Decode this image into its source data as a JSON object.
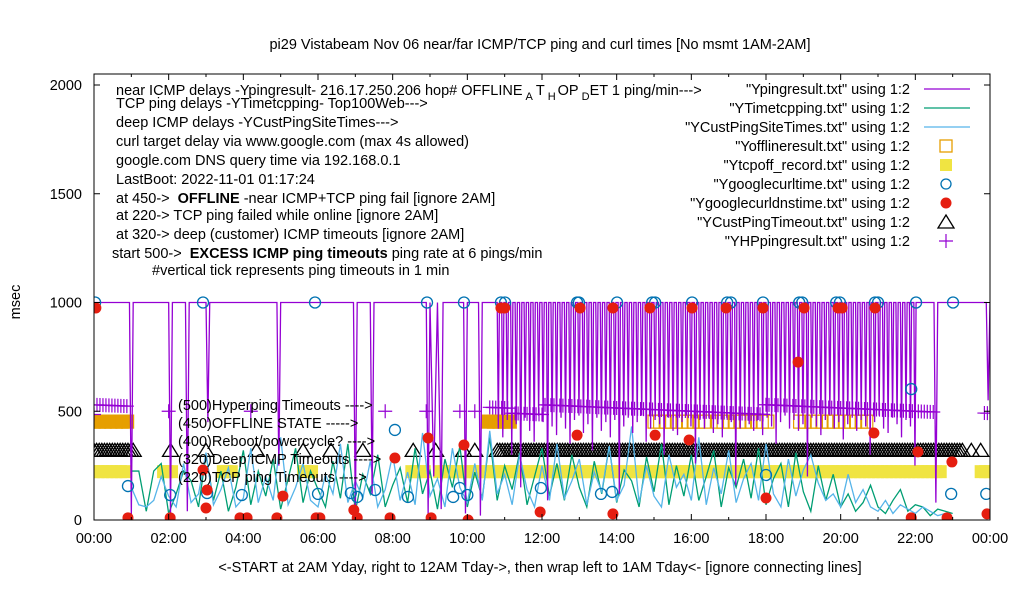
{
  "colors": {
    "ping": "#9400d3",
    "tcp": "#009e73",
    "deep": "#56b4e9",
    "offline": "#e69f00",
    "tcpoff": "#f0e442",
    "curl": "#0072b2",
    "dns": "#e51e10",
    "custtimeout": "#000000",
    "hp": "#9400d3"
  },
  "chart_data": {
    "type": "line",
    "title": "pi29 Vistabeam Nov 06  near/far ICMP/TCP ping and curl times [No msmt 1AM-2AM]",
    "xlabel": "<-START at 2AM Yday, right to 12AM Tday->, then wrap left to 1AM Tday<- [ignore connecting lines]",
    "ylabel": "msec",
    "xlim": [
      0,
      24
    ],
    "ylim": [
      0,
      2000
    ],
    "x_ticks": [
      "00:00",
      "02:00",
      "04:00",
      "06:00",
      "08:00",
      "10:00",
      "12:00",
      "14:00",
      "16:00",
      "18:00",
      "20:00",
      "22:00",
      "00:00"
    ],
    "y_ticks": [
      "0",
      "500",
      "1000",
      "1500",
      "2000"
    ],
    "grid": false,
    "legend_position": "top-right",
    "notes": [
      {
        "text": "TCP ping delays -YTimetcpping- Top100Web--->"
      },
      {
        "text": "deep ICMP delays -YCustPingSiteTimes--->"
      },
      {
        "text": "curl target delay via www.google.com (max 4s allowed)"
      },
      {
        "text": "google.com DNS query time via 192.168.0.1"
      },
      {
        "text": "LastBoot: 2022-11-01 01:17:24"
      },
      {
        "pre": "at 450-> ",
        "bold": "OFFLINE",
        "post": " -near ICMP+TCP ping fail [ignore 2AM]"
      },
      {
        "text": "at 220-> TCP ping failed while online [ignore 2AM]"
      },
      {
        "text": "at 320-> deep (customer) ICMP timeouts [ignore 2AM]"
      },
      {
        "pre": "start 500-> ",
        "bold": "EXCESS ICMP ping timeouts",
        "post": "  ping rate at 6 pings/min"
      },
      {
        "text": "#vertical tick represents ping timeouts in 1 min"
      }
    ],
    "first_note": {
      "a": "near ICMP delays -Ypingresult- 216.17.250.206 hop# OFFLINE",
      "s1": "A",
      "b": "T",
      "s2": "H",
      "c": "OP",
      "s3": "D",
      "d": "ET 1 ping/min--->"
    },
    "level_labels": [
      {
        "text": "(500)Hyperping Timeouts ---->",
        "y": 500
      },
      {
        "text": "(450)OFFLINE STATE ----->",
        "y": 450
      },
      {
        "text": "(400)Reboot/powercycle? ---->",
        "y": 400
      },
      {
        "text": "(320)Deep ICMP Timeouts ---->",
        "y": 320
      },
      {
        "text": "(220)TCP ping Timeouts ---->",
        "y": 220
      }
    ],
    "legend": [
      "\"Ypingresult.txt\" using 1:2",
      "\"YTimetcpping.txt\" using 1:2",
      "\"YCustPingSiteTimes.txt\" using 1:2",
      "\"Yofflineresult.txt\" using 1:2",
      "\"Ytcpoff_record.txt\" using 1:2",
      "\"Ygooglecurltime.txt\" using 1:2",
      "\"Ygooglecurldnstime.txt\" using 1:2",
      "\"YCustPingTimeout.txt\" using 1:2",
      "\"YHPpingresult.txt\" using 1:2"
    ],
    "series": {
      "ping_sparse": [
        [
          0,
          1000
        ],
        [
          0.95,
          1000
        ],
        [
          1.0,
          20
        ],
        [
          1.05,
          1000
        ],
        [
          2.0,
          1000
        ],
        [
          2.05,
          30
        ],
        [
          2.1,
          1000
        ],
        [
          2.45,
          1000
        ],
        [
          2.5,
          40
        ],
        [
          2.55,
          1000
        ],
        [
          3.0,
          1000
        ],
        [
          3.05,
          450
        ],
        [
          3.1,
          1000
        ],
        [
          4.9,
          1000
        ],
        [
          4.95,
          250
        ],
        [
          5.0,
          1000
        ],
        [
          6.95,
          1000
        ],
        [
          7.0,
          20
        ],
        [
          7.05,
          1000
        ],
        [
          7.4,
          1000
        ],
        [
          7.45,
          120
        ],
        [
          7.5,
          1000
        ],
        [
          8.9,
          1000
        ],
        [
          8.95,
          20
        ],
        [
          9.0,
          1000
        ],
        [
          9.1,
          200
        ],
        [
          9.2,
          1000
        ],
        [
          9.3,
          50
        ],
        [
          9.35,
          1000
        ],
        [
          9.9,
          1000
        ],
        [
          9.95,
          30
        ],
        [
          10.0,
          1000
        ],
        [
          10.3,
          1000
        ],
        [
          10.35,
          20
        ],
        [
          10.4,
          1000
        ],
        [
          10.8,
          1000
        ]
      ],
      "ping_dense": {
        "start": 10.8,
        "step": 0.12,
        "lows": [
          420,
          380,
          460,
          300,
          440,
          150,
          470,
          410,
          360,
          480,
          450,
          90,
          430,
          390,
          470,
          420,
          350,
          460,
          480,
          400,
          440,
          320,
          470,
          410,
          450,
          380,
          460,
          120,
          430,
          470,
          400,
          450,
          480,
          360,
          420,
          460,
          440,
          300,
          470,
          410,
          390,
          450,
          480,
          430,
          260,
          460,
          420,
          470,
          400,
          440,
          380,
          470,
          450,
          160,
          420,
          480,
          440,
          410,
          460,
          390,
          470,
          430,
          350,
          450,
          480,
          420,
          460,
          410,
          440,
          200,
          470,
          430,
          390,
          460,
          480,
          420,
          450,
          370,
          440,
          470,
          410,
          460,
          430,
          300,
          450,
          480,
          420,
          400,
          470,
          440,
          380,
          460,
          430,
          250
        ]
      },
      "ping_tail": [
        [
          22.5,
          1000
        ],
        [
          22.55,
          80
        ],
        [
          22.6,
          1000
        ],
        [
          23.9,
          1000
        ],
        [
          23.95,
          550
        ],
        [
          24,
          1000
        ]
      ],
      "tcp": {
        "start": 1.0,
        "step": 0.2,
        "values": [
          225,
          225,
          40,
          225,
          260,
          30,
          120,
          225,
          180,
          60,
          300,
          90,
          225,
          40,
          150,
          320,
          70,
          225,
          110,
          280,
          50,
          190,
          330,
          80,
          225,
          140,
          60,
          270,
          100,
          350,
          40,
          210,
          120,
          300,
          60,
          160,
          240,
          80,
          330,
          120,
          225,
          50,
          280,
          150,
          340,
          60,
          220,
          100,
          380,
          90,
          250,
          140,
          310,
          70,
          200,
          330,
          110,
          260,
          90,
          300,
          150,
          60,
          270,
          120,
          340,
          80,
          230,
          180,
          60,
          290,
          130,
          350,
          70,
          250,
          110,
          300,
          90,
          200,
          320,
          60,
          240,
          150,
          280,
          100,
          330,
          70,
          190,
          260,
          60,
          310,
          130,
          40,
          250,
          90,
          210,
          60,
          120,
          40,
          80,
          160,
          60,
          30,
          90,
          140,
          40,
          70,
          60,
          20,
          50,
          40,
          30
        ]
      },
      "deep": {
        "start": 1.0,
        "step": 0.2,
        "values": [
          150,
          70,
          60,
          90,
          200,
          110,
          60,
          260,
          80,
          120,
          310,
          70,
          140,
          240,
          60,
          100,
          330,
          80,
          200,
          90,
          380,
          70,
          150,
          260,
          90,
          60,
          210,
          120,
          350,
          80,
          180,
          100,
          270,
          60,
          140,
          300,
          90,
          220,
          70,
          400,
          110,
          190,
          60,
          330,
          150,
          80,
          260,
          90,
          410,
          120,
          210,
          70,
          300,
          140,
          60,
          250,
          90,
          350,
          100,
          180,
          280,
          70,
          220,
          130,
          340,
          90,
          160,
          430,
          80,
          250,
          110,
          60,
          300,
          150,
          210,
          90,
          380,
          70,
          240,
          120,
          320,
          80,
          190,
          260,
          90,
          350,
          120,
          60,
          280,
          110,
          230,
          300,
          170,
          90,
          120,
          60,
          210,
          80,
          140,
          60,
          40,
          90,
          30,
          70,
          50,
          30,
          60,
          40,
          20,
          30,
          10
        ]
      },
      "curl": [
        [
          0.03,
          1000
        ],
        [
          2.92,
          1000
        ],
        [
          5.92,
          1000
        ],
        [
          8.92,
          1000
        ],
        [
          9.91,
          1000
        ],
        [
          10.9,
          1000
        ],
        [
          11.01,
          1000
        ],
        [
          12.94,
          1000
        ],
        [
          12.99,
          1000
        ],
        [
          14.01,
          1000
        ],
        [
          14.95,
          1000
        ],
        [
          15.03,
          1000
        ],
        [
          16.02,
          1000
        ],
        [
          16.96,
          1000
        ],
        [
          17.06,
          1000
        ],
        [
          17.92,
          1000
        ],
        [
          18.89,
          1000
        ],
        [
          18.97,
          1000
        ],
        [
          19.88,
          1000
        ],
        [
          19.98,
          1000
        ],
        [
          20.92,
          1000
        ],
        [
          21.0,
          1000
        ],
        [
          22.02,
          1000
        ],
        [
          23.01,
          1000
        ],
        [
          0.91,
          156
        ],
        [
          2.04,
          115
        ],
        [
          3.03,
          124
        ],
        [
          3.96,
          115
        ],
        [
          6.0,
          120
        ],
        [
          6.88,
          124
        ],
        [
          7.05,
          106
        ],
        [
          7.53,
          138
        ],
        [
          8.06,
          414
        ],
        [
          8.41,
          106
        ],
        [
          9.62,
          106
        ],
        [
          9.8,
          147
        ],
        [
          10.0,
          115
        ],
        [
          11.97,
          147
        ],
        [
          13.58,
          120
        ],
        [
          13.88,
          129
        ],
        [
          18.0,
          207
        ],
        [
          21.89,
          602
        ],
        [
          22.96,
          120
        ],
        [
          23.9,
          120
        ]
      ],
      "dns": [
        [
          0.05,
          975
        ],
        [
          0.91,
          10
        ],
        [
          2.04,
          10
        ],
        [
          2.92,
          230
        ],
        [
          3.0,
          55
        ],
        [
          3.03,
          138
        ],
        [
          3.91,
          10
        ],
        [
          4.1,
          10
        ],
        [
          4.9,
          10
        ],
        [
          5.06,
          110
        ],
        [
          5.95,
          10
        ],
        [
          6.05,
          10
        ],
        [
          6.96,
          46
        ],
        [
          7.05,
          10
        ],
        [
          7.93,
          10
        ],
        [
          8.06,
          285
        ],
        [
          8.95,
          377
        ],
        [
          9.03,
          10
        ],
        [
          9.91,
          345
        ],
        [
          10.02,
          0
        ],
        [
          10.9,
          975
        ],
        [
          11.0,
          975
        ],
        [
          11.95,
          37
        ],
        [
          12.94,
          390
        ],
        [
          13.02,
          975
        ],
        [
          13.9,
          975
        ],
        [
          13.9,
          28
        ],
        [
          14.89,
          975
        ],
        [
          15.03,
          390
        ],
        [
          15.94,
          368
        ],
        [
          16.02,
          975
        ],
        [
          16.93,
          975
        ],
        [
          17.92,
          975
        ],
        [
          18.0,
          101
        ],
        [
          18.86,
          726
        ],
        [
          19.02,
          975
        ],
        [
          19.93,
          975
        ],
        [
          20.04,
          975
        ],
        [
          20.89,
          400
        ],
        [
          20.92,
          975
        ],
        [
          21.89,
          10
        ],
        [
          22.07,
          313
        ],
        [
          22.85,
          10
        ],
        [
          22.98,
          267
        ],
        [
          23.92,
          28
        ]
      ],
      "tcpoff_ranges": [
        [
          0,
          0.9,
          220
        ],
        [
          1.85,
          2.2,
          220
        ],
        [
          3.45,
          3.8,
          220
        ],
        [
          5.6,
          5.95,
          220
        ],
        [
          8.5,
          8.95,
          220
        ],
        [
          9.25,
          10.15,
          220
        ],
        [
          10.2,
          22.8,
          220
        ],
        [
          23.75,
          24,
          220
        ]
      ],
      "offline_ranges": [
        [
          0,
          0.9,
          450
        ],
        [
          10.55,
          11.2,
          450
        ],
        [
          15.0,
          16.4,
          450
        ],
        [
          16.7,
          18.1,
          450
        ],
        [
          18.9,
          20.7,
          450
        ]
      ],
      "custtimeout_ranges": [
        [
          0,
          1.0,
          320
        ],
        [
          10.8,
          23.3,
          320
        ]
      ],
      "custtimeout_points": [
        1.05,
        2.05,
        3.0,
        4.35,
        5.6,
        6.35,
        7.2,
        8.55,
        9.15,
        9.9,
        10.2,
        23.5,
        23.75
      ],
      "hp_ranges": [
        [
          0,
          0.95,
          500
        ],
        [
          10.6,
          11.1,
          500
        ],
        [
          11.2,
          22.5,
          500
        ],
        [
          23.85,
          24,
          500
        ]
      ],
      "hp_points": [
        2.0,
        4.2,
        7.8,
        8.9,
        9.8,
        10.2
      ]
    }
  }
}
